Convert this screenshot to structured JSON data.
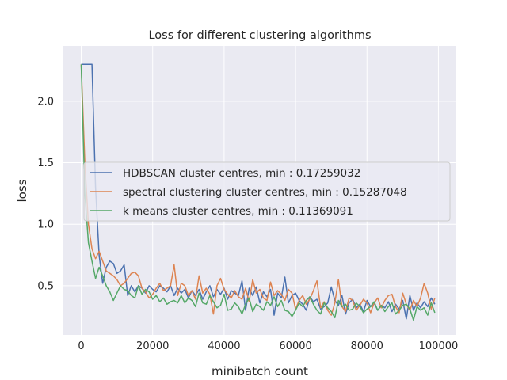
{
  "chart_data": {
    "type": "line",
    "title": "Loss for different clustering algorithms",
    "xlabel": "minibatch count",
    "ylabel": "loss",
    "xlim": [
      -5000,
      105000
    ],
    "ylim": [
      0.1,
      2.45
    ],
    "xticks": [
      0,
      20000,
      40000,
      60000,
      80000,
      100000
    ],
    "yticks": [
      0.5,
      1.0,
      1.5,
      2.0
    ],
    "grid": true,
    "legend_position": "center",
    "background_color": "#eaeaf2",
    "series": [
      {
        "name": "HDBSCAN cluster centres, min : 0.17259032",
        "color": "#4c72b0",
        "x": [
          0,
          1000,
          2000,
          3000,
          4000,
          5000,
          6000,
          7000,
          8000,
          9000,
          10000,
          11000,
          12000,
          13000,
          14000,
          15000,
          16000,
          17000,
          18000,
          19000,
          20000,
          21000,
          22000,
          23000,
          24000,
          25000,
          26000,
          27000,
          28000,
          29000,
          30000,
          31000,
          32000,
          33000,
          34000,
          35000,
          36000,
          37000,
          38000,
          39000,
          40000,
          41000,
          42000,
          43000,
          44000,
          45000,
          46000,
          47000,
          48000,
          49000,
          50000,
          51000,
          52000,
          53000,
          54000,
          55000,
          56000,
          57000,
          58000,
          59000,
          60000,
          61000,
          62000,
          63000,
          64000,
          65000,
          66000,
          67000,
          68000,
          69000,
          70000,
          71000,
          72000,
          73000,
          74000,
          75000,
          76000,
          77000,
          78000,
          79000,
          80000,
          81000,
          82000,
          83000,
          84000,
          85000,
          86000,
          87000,
          88000,
          89000,
          90000,
          91000,
          92000,
          93000,
          94000,
          95000,
          96000,
          97000,
          98000,
          99000
        ],
        "y": [
          2.3,
          2.3,
          2.3,
          2.3,
          1.3,
          0.75,
          0.52,
          0.65,
          0.7,
          0.68,
          0.6,
          0.62,
          0.67,
          0.42,
          0.5,
          0.45,
          0.5,
          0.48,
          0.44,
          0.5,
          0.47,
          0.45,
          0.5,
          0.48,
          0.45,
          0.5,
          0.42,
          0.48,
          0.44,
          0.47,
          0.4,
          0.46,
          0.42,
          0.47,
          0.39,
          0.45,
          0.5,
          0.41,
          0.47,
          0.43,
          0.48,
          0.39,
          0.46,
          0.44,
          0.42,
          0.54,
          0.3,
          0.48,
          0.42,
          0.49,
          0.36,
          0.45,
          0.41,
          0.47,
          0.26,
          0.44,
          0.4,
          0.57,
          0.36,
          0.42,
          0.44,
          0.38,
          0.35,
          0.3,
          0.41,
          0.37,
          0.39,
          0.31,
          0.33,
          0.36,
          0.49,
          0.38,
          0.34,
          0.42,
          0.27,
          0.36,
          0.39,
          0.32,
          0.35,
          0.29,
          0.38,
          0.33,
          0.36,
          0.3,
          0.34,
          0.32,
          0.37,
          0.29,
          0.35,
          0.31,
          0.38,
          0.23,
          0.42,
          0.3,
          0.36,
          0.32,
          0.37,
          0.33,
          0.4,
          0.35
        ]
      },
      {
        "name": "spectral clustering cluster centres, min : 0.15287048",
        "color": "#dd8452",
        "x": [
          0,
          1000,
          2000,
          3000,
          4000,
          5000,
          6000,
          7000,
          8000,
          9000,
          10000,
          11000,
          12000,
          13000,
          14000,
          15000,
          16000,
          17000,
          18000,
          19000,
          20000,
          21000,
          22000,
          23000,
          24000,
          25000,
          26000,
          27000,
          28000,
          29000,
          30000,
          31000,
          32000,
          33000,
          34000,
          35000,
          36000,
          37000,
          38000,
          39000,
          40000,
          41000,
          42000,
          43000,
          44000,
          45000,
          46000,
          47000,
          48000,
          49000,
          50000,
          51000,
          52000,
          53000,
          54000,
          55000,
          56000,
          57000,
          58000,
          59000,
          60000,
          61000,
          62000,
          63000,
          64000,
          65000,
          66000,
          67000,
          68000,
          69000,
          70000,
          71000,
          72000,
          73000,
          74000,
          75000,
          76000,
          77000,
          78000,
          79000,
          80000,
          81000,
          82000,
          83000,
          84000,
          85000,
          86000,
          87000,
          88000,
          89000,
          90000,
          91000,
          92000,
          93000,
          94000,
          95000,
          96000,
          97000,
          98000,
          99000
        ],
        "y": [
          2.3,
          1.5,
          1.0,
          0.8,
          0.72,
          0.78,
          0.7,
          0.62,
          0.6,
          0.58,
          0.55,
          0.5,
          0.52,
          0.56,
          0.6,
          0.61,
          0.58,
          0.48,
          0.45,
          0.4,
          0.43,
          0.48,
          0.52,
          0.46,
          0.48,
          0.5,
          0.67,
          0.42,
          0.52,
          0.5,
          0.42,
          0.46,
          0.39,
          0.58,
          0.44,
          0.48,
          0.43,
          0.27,
          0.5,
          0.56,
          0.47,
          0.43,
          0.4,
          0.46,
          0.41,
          0.39,
          0.48,
          0.37,
          0.55,
          0.44,
          0.47,
          0.4,
          0.38,
          0.53,
          0.42,
          0.46,
          0.43,
          0.38,
          0.47,
          0.44,
          0.31,
          0.38,
          0.42,
          0.35,
          0.39,
          0.46,
          0.54,
          0.32,
          0.37,
          0.3,
          0.26,
          0.36,
          0.55,
          0.33,
          0.29,
          0.4,
          0.38,
          0.3,
          0.34,
          0.39,
          0.36,
          0.28,
          0.36,
          0.4,
          0.32,
          0.38,
          0.42,
          0.43,
          0.33,
          0.28,
          0.44,
          0.35,
          0.3,
          0.38,
          0.33,
          0.4,
          0.52,
          0.44,
          0.31,
          0.4
        ]
      },
      {
        "name": "k means cluster centres, min : 0.11369091",
        "color": "#55a868",
        "x": [
          0,
          1000,
          2000,
          3000,
          4000,
          5000,
          6000,
          7000,
          8000,
          9000,
          10000,
          11000,
          12000,
          13000,
          14000,
          15000,
          16000,
          17000,
          18000,
          19000,
          20000,
          21000,
          22000,
          23000,
          24000,
          25000,
          26000,
          27000,
          28000,
          29000,
          30000,
          31000,
          32000,
          33000,
          34000,
          35000,
          36000,
          37000,
          38000,
          39000,
          40000,
          41000,
          42000,
          43000,
          44000,
          45000,
          46000,
          47000,
          48000,
          49000,
          50000,
          51000,
          52000,
          53000,
          54000,
          55000,
          56000,
          57000,
          58000,
          59000,
          60000,
          61000,
          62000,
          63000,
          64000,
          65000,
          66000,
          67000,
          68000,
          69000,
          70000,
          71000,
          72000,
          73000,
          74000,
          75000,
          76000,
          77000,
          78000,
          79000,
          80000,
          81000,
          82000,
          83000,
          84000,
          85000,
          86000,
          87000,
          88000,
          89000,
          90000,
          91000,
          92000,
          93000,
          94000,
          95000,
          96000,
          97000,
          98000,
          99000
        ],
        "y": [
          2.3,
          1.25,
          0.85,
          0.7,
          0.56,
          0.65,
          0.58,
          0.5,
          0.45,
          0.38,
          0.44,
          0.5,
          0.47,
          0.46,
          0.42,
          0.4,
          0.5,
          0.43,
          0.47,
          0.45,
          0.39,
          0.42,
          0.37,
          0.4,
          0.35,
          0.37,
          0.38,
          0.36,
          0.42,
          0.36,
          0.4,
          0.38,
          0.33,
          0.44,
          0.36,
          0.35,
          0.42,
          0.37,
          0.32,
          0.34,
          0.43,
          0.3,
          0.31,
          0.36,
          0.33,
          0.27,
          0.35,
          0.4,
          0.29,
          0.35,
          0.33,
          0.3,
          0.37,
          0.34,
          0.41,
          0.33,
          0.38,
          0.3,
          0.29,
          0.25,
          0.3,
          0.36,
          0.33,
          0.38,
          0.41,
          0.35,
          0.3,
          0.27,
          0.36,
          0.32,
          0.29,
          0.24,
          0.38,
          0.33,
          0.35,
          0.3,
          0.31,
          0.36,
          0.33,
          0.28,
          0.31,
          0.33,
          0.37,
          0.3,
          0.34,
          0.29,
          0.33,
          0.36,
          0.27,
          0.3,
          0.34,
          0.35,
          0.31,
          0.22,
          0.33,
          0.3,
          0.32,
          0.26,
          0.36,
          0.28
        ]
      }
    ]
  }
}
